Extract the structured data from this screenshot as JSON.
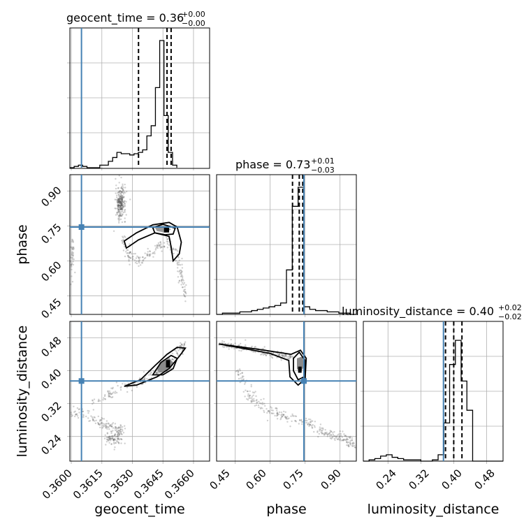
{
  "chart_data": {
    "type": "corner",
    "parameters": [
      "geocent_time",
      "phase",
      "luminosity_distance"
    ],
    "titles": {
      "geocent_time": {
        "text": "geocent_time = 0.36",
        "plus": "+0.00",
        "minus": "−0.00"
      },
      "phase": {
        "text": "phase = 0.73",
        "plus": "+0.01",
        "minus": "−0.03"
      },
      "luminosity_distance": {
        "text": "luminosity_distance = 0.40",
        "plus": "+0.02",
        "minus": "−0.02"
      }
    },
    "axis_labels": {
      "geocent_time": "geocent_time",
      "phase": "phase",
      "luminosity_distance": "luminosity_distance"
    },
    "ranges": {
      "geocent_time": [
        0.35993,
        0.36679
      ],
      "phase": [
        0.37,
        0.97
      ],
      "luminosity_distance": [
        0.18,
        0.52
      ]
    },
    "ticks": {
      "geocent_time": [
        "0.3600",
        "0.3615",
        "0.3630",
        "0.3645",
        "0.3660"
      ],
      "phase": [
        "0.45",
        "0.60",
        "0.75",
        "0.90"
      ],
      "luminosity_distance": [
        "0.24",
        "0.32",
        "0.40",
        "0.48"
      ]
    },
    "truths": {
      "geocent_time": 0.3605,
      "phase": 0.745,
      "luminosity_distance": 0.375
    },
    "quantiles": {
      "geocent_time": [
        0.3633,
        0.3647,
        0.3649
      ],
      "phase": [
        0.696,
        0.725,
        0.74
      ],
      "luminosity_distance": [
        0.38,
        0.4,
        0.42
      ]
    },
    "histograms": {
      "geocent_time": {
        "edges": [
          0.35993,
          0.36014,
          0.36035,
          0.36056,
          0.36077,
          0.36098,
          0.36119,
          0.3614,
          0.36161,
          0.36182,
          0.36203,
          0.36224,
          0.36245,
          0.36266,
          0.36287,
          0.36308,
          0.36329,
          0.3635,
          0.36371,
          0.36392,
          0.36413,
          0.36434,
          0.36455,
          0.36476,
          0.36497,
          0.36518
        ],
        "heights": [
          0.0,
          0.01,
          0.02,
          0.01,
          0.0,
          0.0,
          0.0,
          0.02,
          0.02,
          0.05,
          0.08,
          0.12,
          0.11,
          0.11,
          0.1,
          0.11,
          0.12,
          0.14,
          0.25,
          0.33,
          0.63,
          1.0,
          0.41,
          0.12,
          0.02
        ]
      },
      "phase": {
        "edges": [
          0.37,
          0.395,
          0.42,
          0.445,
          0.47,
          0.495,
          0.52,
          0.545,
          0.57,
          0.595,
          0.62,
          0.645,
          0.67,
          0.695,
          0.72,
          0.745,
          0.77,
          0.795,
          0.82,
          0.845,
          0.87,
          0.895,
          0.92,
          0.945,
          0.97
        ],
        "heights": [
          0.0,
          0.01,
          0.01,
          0.01,
          0.02,
          0.02,
          0.03,
          0.04,
          0.05,
          0.06,
          0.07,
          0.09,
          0.35,
          0.85,
          1.0,
          0.06,
          0.04,
          0.03,
          0.03,
          0.02,
          0.02,
          0.01,
          0.01,
          0.0
        ]
      },
      "luminosity_distance": {
        "edges": [
          0.18,
          0.194,
          0.208,
          0.222,
          0.236,
          0.25,
          0.264,
          0.278,
          0.292,
          0.306,
          0.32,
          0.334,
          0.348,
          0.362,
          0.376,
          0.39,
          0.404,
          0.418,
          0.432,
          0.446,
          0.46,
          0.474,
          0.488,
          0.502,
          0.52
        ],
        "heights": [
          0.0,
          0.01,
          0.02,
          0.04,
          0.05,
          0.03,
          0.02,
          0.01,
          0.01,
          0.01,
          0.0,
          0.0,
          0.01,
          0.05,
          0.3,
          0.76,
          0.95,
          0.63,
          0.4,
          0.0,
          0.0,
          0.0,
          0.0,
          0.0
        ]
      }
    },
    "grid": true
  }
}
